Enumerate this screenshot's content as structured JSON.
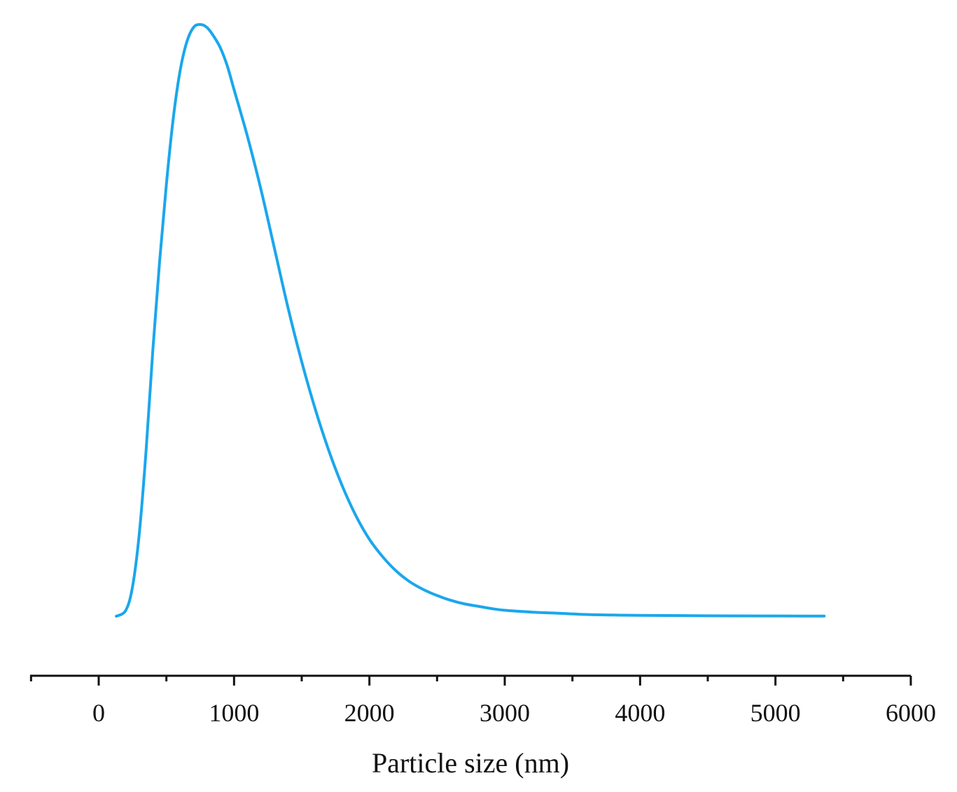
{
  "chart_data": {
    "type": "line",
    "title": "",
    "xlabel": "Particle size (nm)",
    "ylabel": "",
    "xlim": [
      -500,
      6000
    ],
    "ylim": [
      0,
      1
    ],
    "grid": false,
    "y_axis_shown": false,
    "x_ticks": [
      0,
      1000,
      2000,
      3000,
      4000,
      5000,
      6000
    ],
    "x_tick_labels": [
      "0",
      "1000",
      "2000",
      "3000",
      "4000",
      "5000",
      "6000"
    ],
    "x_minor_tick_step": 500,
    "line_color": "#1AA7EC",
    "series": [
      {
        "x": [
          130,
          200,
          250,
          300,
          350,
          400,
          450,
          500,
          550,
          600,
          650,
          700,
          750,
          800,
          850,
          900,
          950,
          1000,
          1100,
          1200,
          1300,
          1400,
          1500,
          1600,
          1700,
          1800,
          1900,
          2000,
          2100,
          2200,
          2300,
          2400,
          2500,
          2600,
          2700,
          2800,
          2900,
          3000,
          3200,
          3400,
          3600,
          3800,
          4000,
          4500,
          5000,
          5360
        ],
        "y": [
          0.0,
          0.01,
          0.05,
          0.14,
          0.28,
          0.45,
          0.6,
          0.73,
          0.84,
          0.92,
          0.97,
          0.995,
          1.0,
          0.995,
          0.98,
          0.96,
          0.93,
          0.89,
          0.81,
          0.72,
          0.62,
          0.52,
          0.43,
          0.35,
          0.28,
          0.22,
          0.17,
          0.13,
          0.1,
          0.076,
          0.058,
          0.045,
          0.035,
          0.027,
          0.021,
          0.017,
          0.013,
          0.01,
          0.007,
          0.005,
          0.003,
          0.002,
          0.0015,
          0.0008,
          0.0004,
          0.0003
        ]
      }
    ]
  }
}
